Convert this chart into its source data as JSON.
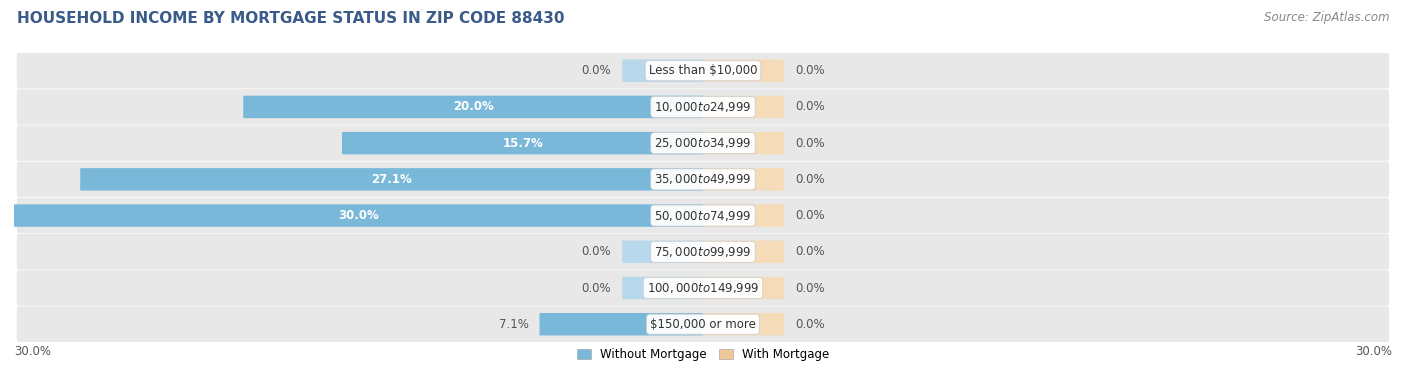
{
  "title": "HOUSEHOLD INCOME BY MORTGAGE STATUS IN ZIP CODE 88430",
  "source": "Source: ZipAtlas.com",
  "categories": [
    "Less than $10,000",
    "$10,000 to $24,999",
    "$25,000 to $34,999",
    "$35,000 to $49,999",
    "$50,000 to $74,999",
    "$75,000 to $99,999",
    "$100,000 to $149,999",
    "$150,000 or more"
  ],
  "without_mortgage": [
    0.0,
    20.0,
    15.7,
    27.1,
    30.0,
    0.0,
    0.0,
    7.1
  ],
  "with_mortgage": [
    0.0,
    0.0,
    0.0,
    0.0,
    0.0,
    0.0,
    0.0,
    0.0
  ],
  "color_without": "#7ab8d9",
  "color_with": "#f0c898",
  "color_without_light": "#b8d8ec",
  "color_with_light": "#f5dbb8",
  "xlim_left": -30.0,
  "xlim_right": 30.0,
  "stub_size": 3.5,
  "bg_row": "#e8e8e8",
  "bg_figure": "#ffffff",
  "label_fontsize": 8.5,
  "title_fontsize": 11,
  "source_fontsize": 8.5,
  "bar_height": 0.58,
  "title_color": "#3a5a8a",
  "source_color": "#888888",
  "value_color_outside": "#555555",
  "value_color_inside": "#ffffff",
  "cat_label_color": "#333333"
}
